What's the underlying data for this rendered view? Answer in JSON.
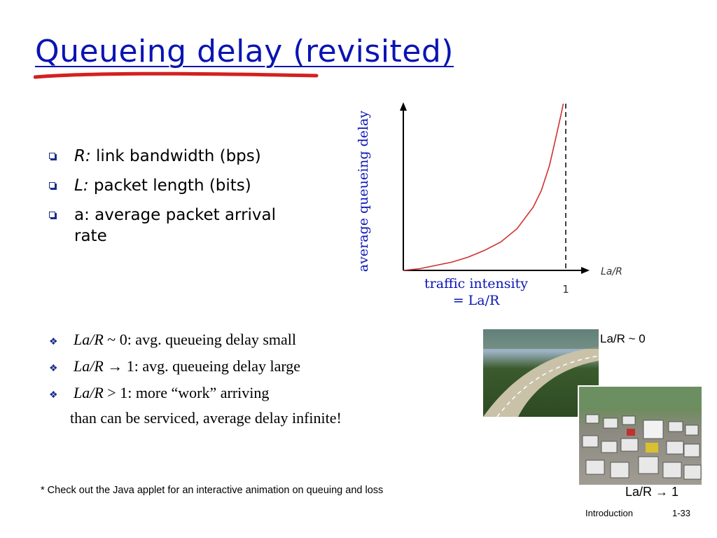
{
  "slide": {
    "title": "Queueing delay (revisited)",
    "bullets_top": [
      {
        "term": "R:",
        "rest": " link bandwidth (bps)"
      },
      {
        "term": "L:",
        "rest": " packet length (bits)"
      },
      {
        "term": "",
        "rest": "a: average packet arrival",
        "cont": "rate"
      }
    ],
    "bullets_bottom": [
      {
        "term": "La/R",
        "rest": " ~ 0: avg. queueing delay small"
      },
      {
        "term": "La/R",
        "arrow": "→",
        "rest": " 1: avg. queueing delay large"
      },
      {
        "term": "La/R",
        "rest": " > 1: more “work” arriving"
      }
    ],
    "bullets_bottom_cont": "than can be serviced, average delay infinite!",
    "photo_label_top": "La/R ~ 0",
    "photo_label_bottom_prefix": "La/R ",
    "photo_label_bottom_arrow": "→",
    "photo_label_bottom_suffix": " 1",
    "footnote": "* Check out the Java applet for an interactive animation on queuing and loss",
    "footer_left": "Introduction",
    "footer_right": "1-33",
    "accent_color": "#0a14b4",
    "curve_color": "#d03030"
  },
  "chart_data": {
    "type": "line",
    "ylabel": "average  queueing delay",
    "xlabel_line1": "traffic intensity",
    "xlabel_line2": "= La/R",
    "x_axis_name": "La/R",
    "x_tick_label": "1",
    "asymptote_x": 1,
    "series": [
      {
        "x": [
          0,
          0.1,
          0.2,
          0.3,
          0.4,
          0.5,
          0.6,
          0.7,
          0.8,
          0.85,
          0.9,
          0.94,
          0.97,
          0.985
        ],
        "y": [
          0,
          0.01,
          0.03,
          0.05,
          0.08,
          0.12,
          0.17,
          0.25,
          0.38,
          0.48,
          0.63,
          0.8,
          0.93,
          1.0
        ]
      }
    ]
  }
}
